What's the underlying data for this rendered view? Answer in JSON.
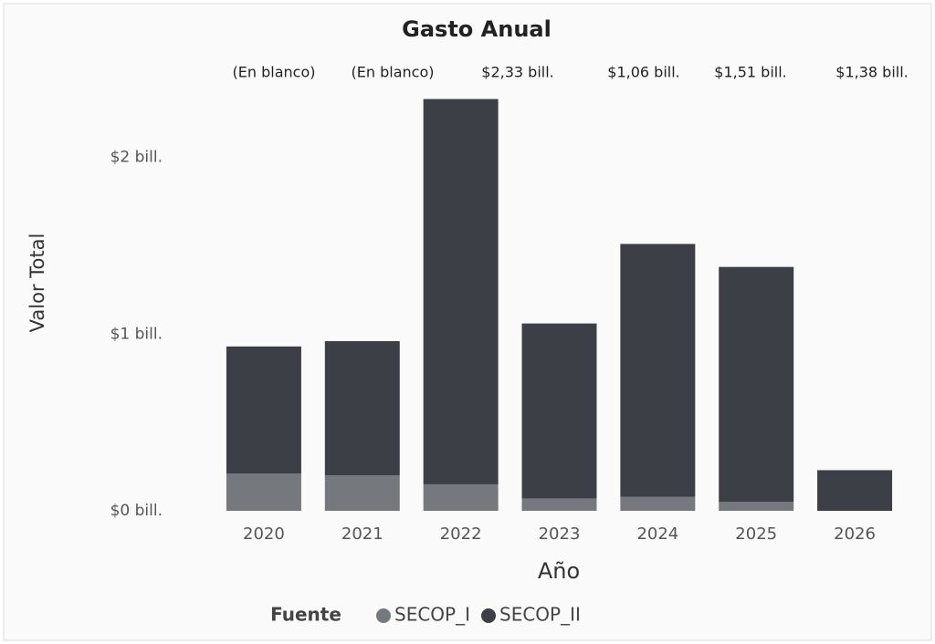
{
  "chart_data": {
    "type": "stacked_bar",
    "title": "Gasto Anual",
    "categories": [
      "2020",
      "2021",
      "2022",
      "2023",
      "2024",
      "2025",
      "2026"
    ],
    "series": [
      {
        "name": "SECOP_I",
        "color": "#75797e",
        "values": [
          0.21,
          0.2,
          0.15,
          0.07,
          0.08,
          0.05,
          0
        ]
      },
      {
        "name": "SECOP_II",
        "color": "#3c4046",
        "values": [
          0.72,
          0.76,
          2.18,
          0.99,
          1.43,
          1.33,
          0.23
        ]
      }
    ],
    "total_labels": [
      "(En blanco)",
      "(En blanco)",
      "$2,33 bill.",
      "$1,06 bill.",
      "$1,51 bill.",
      "$1,38 bill.",
      null
    ],
    "ylim": [
      0,
      2.4
    ],
    "yticks": [
      {
        "value": 0,
        "label": "$0 bill."
      },
      {
        "value": 1,
        "label": "$1 bill."
      },
      {
        "value": 2,
        "label": "$2 bill."
      }
    ],
    "xlabel": "Año",
    "ylabel": "Valor Total",
    "legend_title": "Fuente",
    "legend": "bottom"
  }
}
